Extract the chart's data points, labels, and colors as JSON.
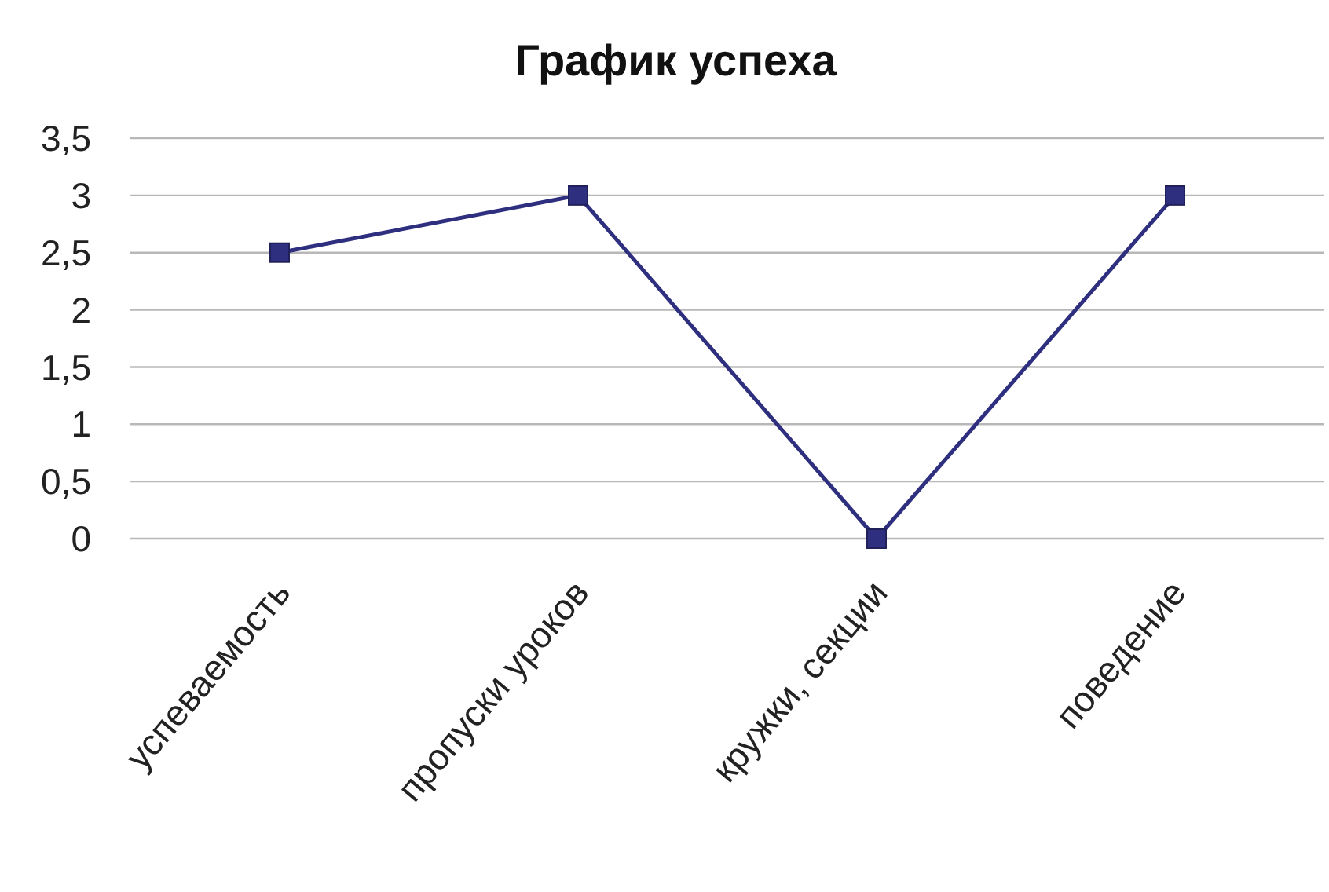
{
  "chart_data": {
    "type": "line",
    "title": "График успеха",
    "categories": [
      "успеваемость",
      "пропуски уроков",
      "кружки, секции",
      "поведение"
    ],
    "series": [
      {
        "color": "#2f2f7f",
        "values": [
          2.5,
          3,
          0,
          3
        ]
      }
    ],
    "ylim": [
      0,
      3.5
    ],
    "yticks": [
      0,
      {
        "value": 0.5,
        "label": "0,5"
      },
      1,
      {
        "value": 1.5,
        "label": "1,5"
      },
      2,
      {
        "value": 2.5,
        "label": "2,5"
      },
      3,
      {
        "value": 3.5,
        "label": "3,5"
      }
    ],
    "grid": "y",
    "marker": "square",
    "line_style": "solid"
  }
}
